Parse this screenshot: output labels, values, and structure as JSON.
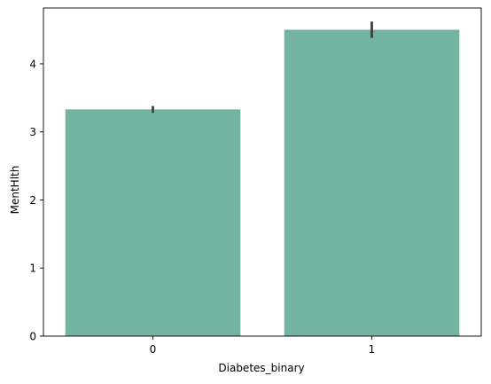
{
  "chart_data": {
    "type": "bar",
    "xlabel": "Diabetes_binary",
    "ylabel": "MentHlth",
    "categories": [
      "0",
      "1"
    ],
    "values": [
      3.33,
      4.5
    ],
    "error_bars": [
      [
        3.28,
        3.38
      ],
      [
        4.38,
        4.62
      ]
    ],
    "ylim": [
      0,
      4.82
    ],
    "yticks": [
      0,
      1,
      2,
      3,
      4
    ],
    "grid": false,
    "colors": {
      "bar": "#72b4a0",
      "error_bar": "#3f3f3f",
      "axis": "#000000"
    }
  }
}
